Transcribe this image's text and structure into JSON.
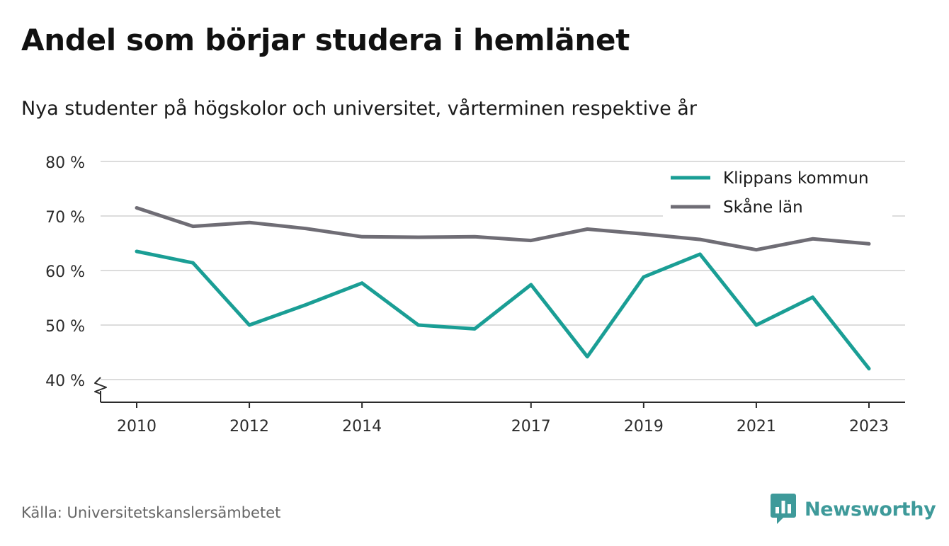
{
  "title": "Andel som börjar studera i hemlänet",
  "subtitle": "Nya studenter på högskolor och universitet, vårterminen respektive år",
  "source": "Källa: Universitetskanslersämbetet",
  "brand": {
    "name": "Newsworthy",
    "icon": "newsworthy-logo-icon",
    "color": "#3e9a9a"
  },
  "chart_data": {
    "type": "line",
    "title": "Andel som börjar studera i hemlänet",
    "subtitle": "Nya studenter på högskolor och universitet, vårterminen respektive år",
    "x": [
      2010,
      2011,
      2012,
      2013,
      2014,
      2015,
      2016,
      2017,
      2018,
      2019,
      2020,
      2021,
      2022,
      2023
    ],
    "xticks": [
      2010,
      2012,
      2014,
      2017,
      2019,
      2021,
      2023
    ],
    "yticks": [
      40,
      50,
      60,
      70,
      80
    ],
    "ytick_suffix": " %",
    "ylim": [
      40,
      80
    ],
    "y_axis_break": true,
    "grid": "horizontal",
    "legend_position": "top-right",
    "series": [
      {
        "name": "Klippans kommun",
        "color": "#1a9e95",
        "values": [
          63.5,
          61.4,
          50.0,
          53.7,
          57.7,
          50.0,
          49.3,
          57.4,
          44.2,
          58.8,
          63.0,
          50.0,
          55.1,
          42.0
        ]
      },
      {
        "name": "Skåne län",
        "color": "#6f6d75",
        "values": [
          71.5,
          68.1,
          68.8,
          67.7,
          66.2,
          66.1,
          66.2,
          65.5,
          67.6,
          66.7,
          65.7,
          63.8,
          65.8,
          64.9
        ]
      }
    ]
  }
}
